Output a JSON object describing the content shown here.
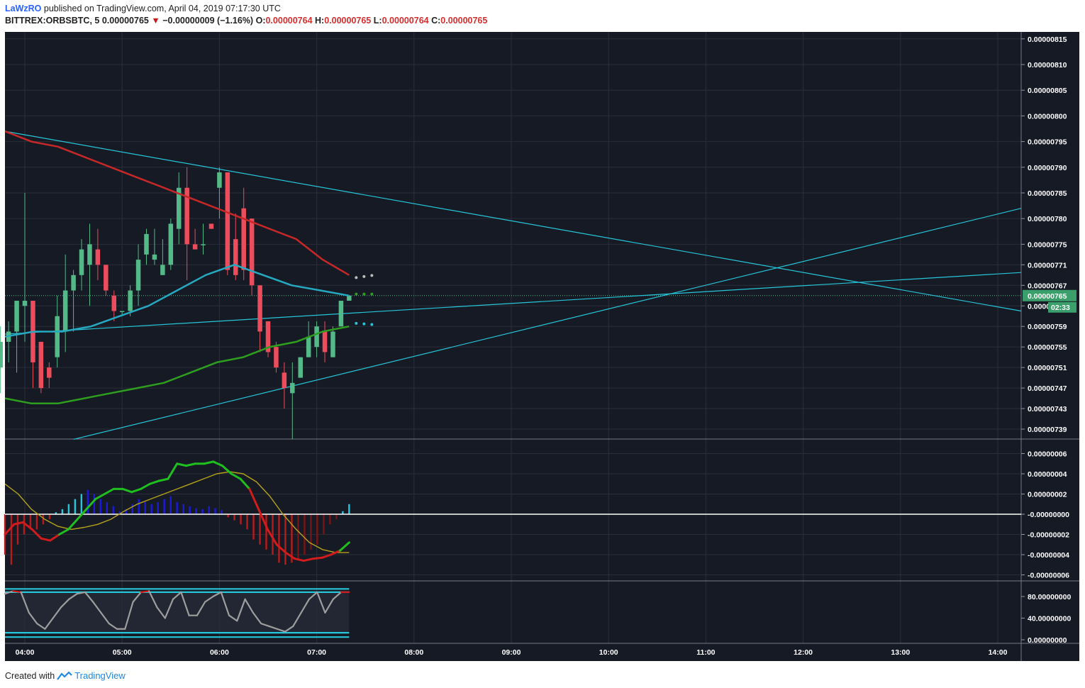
{
  "header": {
    "author": "LaWzRO",
    "published": "published on TradingView.com, April 04, 2019 07:17:30 UTC",
    "symbol": "BITTREX:ORBSBTC, 5",
    "last": "0.00000765",
    "change": "−0.00000009 (−1.16%)",
    "o_label": "O:",
    "o_val": "0.00000764",
    "h_label": "H:",
    "h_val": "0.00000765",
    "l_label": "L:",
    "l_val": "0.00000764",
    "c_label": "C:",
    "c_val": "0.00000765"
  },
  "footer": {
    "created_with": "Created with",
    "brand": "TradingView"
  },
  "colors": {
    "background": "#161a25",
    "grid": "#2a2e39",
    "up_candle": "#53b987",
    "down_candle": "#eb4d5c",
    "trendline": "#26c6da",
    "ma_red": "#c62828",
    "ma_cyan": "#26a9c0",
    "ma_green": "#2e9e1f",
    "macd_signal": "#b5a21a",
    "stoch_line": "#9e9e9e",
    "last_price_bg": "#3a9f6a"
  },
  "chart_data": [
    {
      "type": "candlestick",
      "title": "BITTREX:ORBSBTC, 5",
      "x_ticks": [
        "04:00",
        "05:00",
        "06:00",
        "07:00",
        "08:00",
        "09:00",
        "10:00",
        "11:00",
        "12:00",
        "13:00",
        "14:00"
      ],
      "y_ticks": [
        "0.00000815",
        "0.00000810",
        "0.00000805",
        "0.00000800",
        "0.00000795",
        "0.00000790",
        "0.00000785",
        "0.00000780",
        "0.00000775",
        "0.00000771",
        "0.00000767",
        "0.00000763",
        "0.00000759",
        "0.00000755",
        "0.00000751",
        "0.00000747",
        "0.00000743",
        "0.00000739"
      ],
      "ylim": [
        7.36e-06,
        8.17e-06
      ],
      "last_price_label": "0.00000765",
      "countdown": "02:33",
      "candles": [
        {
          "t": "03:45",
          "o": 751,
          "h": 759,
          "l": 746,
          "c": 756
        },
        {
          "t": "03:50",
          "o": 756,
          "h": 760,
          "l": 752,
          "c": 758
        },
        {
          "t": "03:55",
          "o": 758,
          "h": 764,
          "l": 750,
          "c": 764
        },
        {
          "t": "04:00",
          "o": 763,
          "h": 785,
          "l": 756,
          "c": 764
        },
        {
          "t": "04:05",
          "o": 764,
          "h": 764,
          "l": 747,
          "c": 752
        },
        {
          "t": "04:10",
          "o": 756,
          "h": 756,
          "l": 746,
          "c": 747
        },
        {
          "t": "04:15",
          "o": 751,
          "h": 752,
          "l": 747,
          "c": 749
        },
        {
          "t": "04:20",
          "o": 753,
          "h": 765,
          "l": 751,
          "c": 761
        },
        {
          "t": "04:25",
          "o": 758,
          "h": 773,
          "l": 754,
          "c": 766
        },
        {
          "t": "04:30",
          "o": 766,
          "h": 770,
          "l": 758,
          "c": 769
        },
        {
          "t": "04:35",
          "o": 769,
          "h": 776,
          "l": 766,
          "c": 774
        },
        {
          "t": "04:40",
          "o": 771,
          "h": 779,
          "l": 763,
          "c": 775
        },
        {
          "t": "04:45",
          "o": 774,
          "h": 778,
          "l": 768,
          "c": 771
        },
        {
          "t": "04:50",
          "o": 771,
          "h": 771,
          "l": 765,
          "c": 766
        },
        {
          "t": "04:55",
          "o": 765,
          "h": 766,
          "l": 760,
          "c": 762
        },
        {
          "t": "05:00",
          "o": 762,
          "h": 762,
          "l": 761,
          "c": 762
        },
        {
          "t": "05:05",
          "o": 762,
          "h": 767,
          "l": 761,
          "c": 766
        },
        {
          "t": "05:10",
          "o": 766,
          "h": 775,
          "l": 763,
          "c": 772
        },
        {
          "t": "05:15",
          "o": 773,
          "h": 778,
          "l": 771,
          "c": 777
        },
        {
          "t": "05:20",
          "o": 772,
          "h": 778,
          "l": 771,
          "c": 773
        },
        {
          "t": "05:25",
          "o": 769,
          "h": 776,
          "l": 769,
          "c": 771
        },
        {
          "t": "05:30",
          "o": 771,
          "h": 780,
          "l": 770,
          "c": 779
        },
        {
          "t": "05:35",
          "o": 778,
          "h": 789,
          "l": 775,
          "c": 786
        },
        {
          "t": "05:40",
          "o": 786,
          "h": 790,
          "l": 768,
          "c": 775
        },
        {
          "t": "05:45",
          "o": 775,
          "h": 778,
          "l": 774,
          "c": 774
        },
        {
          "t": "05:50",
          "o": 775,
          "h": 779,
          "l": 773,
          "c": 775
        },
        {
          "t": "05:55",
          "o": 779,
          "h": 779,
          "l": 778,
          "c": 778
        },
        {
          "t": "06:00",
          "o": 786,
          "h": 790,
          "l": 780,
          "c": 789
        },
        {
          "t": "06:05",
          "o": 789,
          "h": 789,
          "l": 769,
          "c": 770
        },
        {
          "t": "06:10",
          "o": 776,
          "h": 781,
          "l": 768,
          "c": 769
        },
        {
          "t": "06:15",
          "o": 782,
          "h": 786,
          "l": 768,
          "c": 770
        },
        {
          "t": "06:20",
          "o": 780,
          "h": 780,
          "l": 765,
          "c": 767
        },
        {
          "t": "06:25",
          "o": 767,
          "h": 767,
          "l": 754,
          "c": 758
        },
        {
          "t": "06:30",
          "o": 760,
          "h": 760,
          "l": 753,
          "c": 754
        },
        {
          "t": "06:35",
          "o": 755,
          "h": 756,
          "l": 750,
          "c": 751
        },
        {
          "t": "06:40",
          "o": 750,
          "h": 752,
          "l": 743,
          "c": 747
        },
        {
          "t": "06:45",
          "o": 746,
          "h": 752,
          "l": 737,
          "c": 748
        },
        {
          "t": "06:50",
          "o": 749,
          "h": 753,
          "l": 749,
          "c": 753
        },
        {
          "t": "06:55",
          "o": 753,
          "h": 760,
          "l": 753,
          "c": 757
        },
        {
          "t": "07:00",
          "o": 755,
          "h": 760,
          "l": 753,
          "c": 759
        },
        {
          "t": "07:05",
          "o": 758,
          "h": 760,
          "l": 752,
          "c": 754
        },
        {
          "t": "07:10",
          "o": 753,
          "h": 759,
          "l": 753,
          "c": 758
        },
        {
          "t": "07:15",
          "o": 759,
          "h": 764,
          "l": 759,
          "c": 764
        },
        {
          "t": "07:20",
          "o": 764,
          "h": 765,
          "l": 764,
          "c": 765
        }
      ],
      "trendlines": [
        {
          "name": "descending resistance",
          "from": [
            "03:43",
            7.97e-06
          ],
          "to": [
            "14:30",
            7.62e-06
          ]
        },
        {
          "name": "rising support",
          "from": [
            "04:30",
            7.37e-06
          ],
          "to": [
            "14:30",
            7.82e-06
          ]
        },
        {
          "name": "flat rising line",
          "from": [
            "03:43",
            7.575e-06
          ],
          "to": [
            "14:30",
            7.695e-06
          ]
        }
      ],
      "moving_averages": [
        {
          "color": "ma_red",
          "values": [
            797,
            795,
            794,
            792,
            790,
            788,
            786,
            784,
            782,
            780,
            778,
            776,
            772,
            769
          ]
        },
        {
          "color": "ma_cyan",
          "values": [
            757,
            758,
            758,
            759,
            761,
            763,
            766,
            769,
            771,
            769,
            767,
            766,
            765
          ]
        },
        {
          "color": "ma_green",
          "values": [
            745,
            744,
            744,
            745,
            746,
            747,
            748,
            750,
            752,
            753,
            755,
            756,
            758,
            759
          ]
        }
      ]
    },
    {
      "type": "macd",
      "y_ticks": [
        "0.00000006",
        "0.00000004",
        "0.00000002",
        "-0.00000000",
        "-0.00000002",
        "-0.00000004",
        "-0.00000006"
      ],
      "ylim": [
        -6.5e-08,
        6.5e-08
      ],
      "histogram": [
        -4,
        -5,
        -3,
        -2,
        -1.5,
        -1.5,
        -1,
        -0.5,
        0.2,
        0.5,
        1,
        1.5,
        2,
        2.4,
        2,
        1.5,
        1.2,
        0.8,
        0.3,
        0.5,
        1,
        1.5,
        1.2,
        1,
        1.2,
        1.5,
        1.8,
        1.2,
        1,
        0.8,
        0.6,
        0.5,
        0.8,
        0.6,
        0.4,
        -0.3,
        -0.6,
        -1,
        -1.5,
        -2.5,
        -3,
        -3.5,
        -4,
        -4.8,
        -5,
        -4.8,
        -4.5,
        -4,
        -3.5,
        -3,
        -2,
        -1,
        -0.5,
        0.3,
        1
      ],
      "macd_line": [
        -2,
        -1,
        -0.8,
        -1.5,
        -2.4,
        -2.6,
        -2,
        -1.5,
        -0.5,
        0.5,
        1.5,
        2,
        2.5,
        2.5,
        2.2,
        2.5,
        3,
        3.3,
        3.5,
        5,
        4.8,
        5,
        5,
        5.2,
        4.8,
        4,
        3.5,
        2.5,
        0.5,
        -1.5,
        -3,
        -3.8,
        -4.4,
        -4.6,
        -4.4,
        -4.3,
        -4,
        -3.6,
        -2.8
      ],
      "signal_line": [
        3,
        2,
        0.5,
        -0.5,
        -1.2,
        -1.5,
        -1.3,
        -1,
        -0.5,
        0.3,
        1,
        1.5,
        2,
        2.5,
        3,
        3.5,
        4,
        4.2,
        4,
        3.2,
        1.8,
        0,
        -1.5,
        -2.8,
        -3.5,
        -3.8,
        -3.8
      ]
    },
    {
      "type": "stochastic",
      "y_ticks": [
        "80.00000000",
        "40.00000000",
        "0.00000000"
      ],
      "ylim": [
        0,
        100
      ],
      "levels": [
        80,
        20
      ],
      "k_line": [
        85,
        90,
        88,
        50,
        30,
        20,
        40,
        60,
        75,
        85,
        88,
        70,
        50,
        30,
        20,
        20,
        70,
        88,
        90,
        60,
        40,
        75,
        88,
        45,
        45,
        70,
        80,
        88,
        45,
        35,
        75,
        50,
        30,
        25,
        20,
        15,
        25,
        50,
        75,
        88,
        50,
        75,
        88,
        88
      ]
    }
  ]
}
